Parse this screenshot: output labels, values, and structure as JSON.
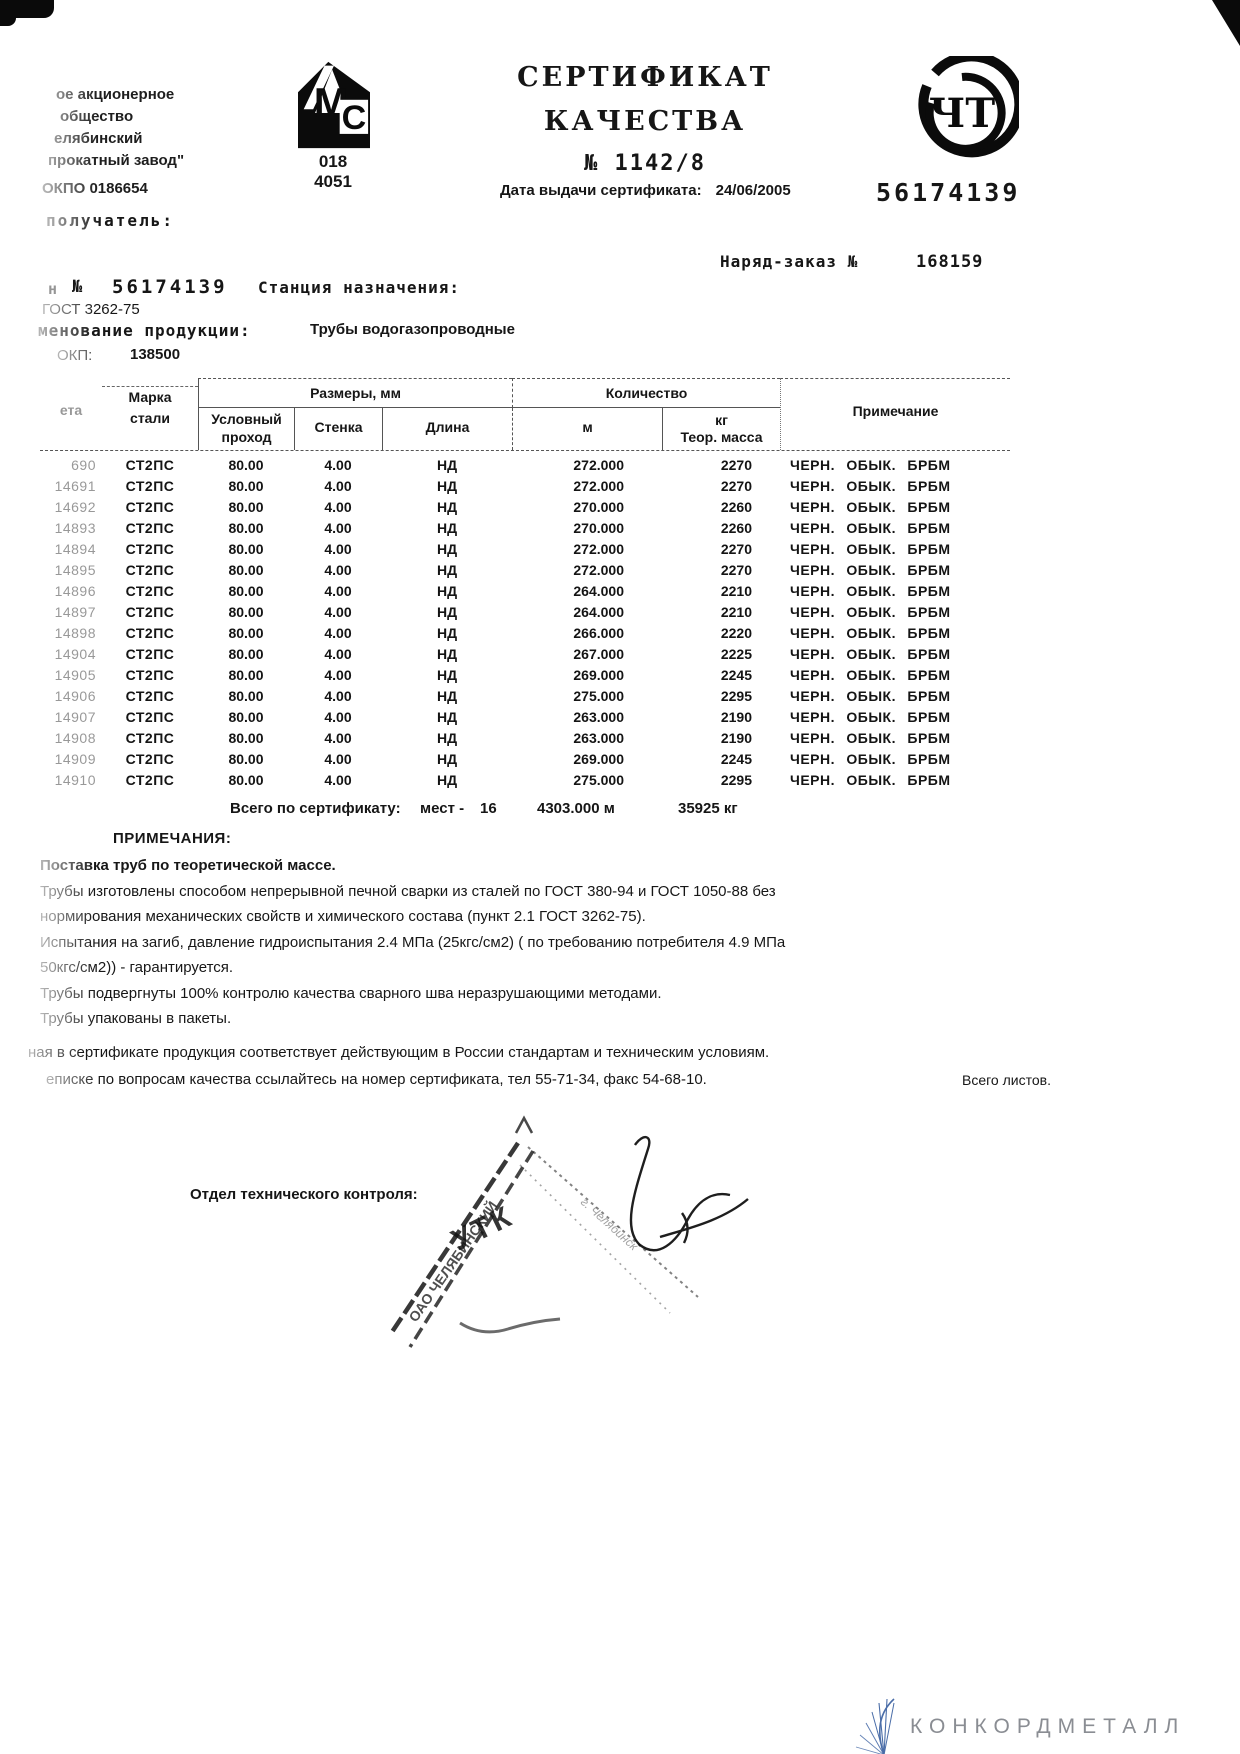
{
  "header": {
    "company_lines": [
      "ое акционерное",
      "общество",
      "елябинский",
      "прокатный завод\"",
      "ОКПО 0186654"
    ],
    "mc_logo": {
      "name": "MC factory mark",
      "code1": "018",
      "code2": "4051"
    },
    "title_line1": "СЕРТИФИКАТ",
    "title_line2": "КАЧЕСТВА",
    "title_number": "№ 1142/8",
    "date_label": "Дата выдачи сертификата:",
    "date_value": "24/06/2005",
    "cht_logo_text": "ЧТ",
    "big_number": "56174139"
  },
  "meta": {
    "receiver_label": "получатель:",
    "order_label": "Наряд-заказ №",
    "order_value": "168159",
    "cert_prefix": "н",
    "no_sign": "№",
    "cert_number": "56174139",
    "station_label": "Станция назначения:",
    "gost": "ГОСТ 3262-75",
    "product_label": "менование продукции:",
    "product_value": "Трубы водогазопроводные",
    "okp_label": "ОКП:",
    "okp_value": "138500"
  },
  "table": {
    "headers": {
      "col_id": "ета",
      "col_steel": "Марка стали",
      "group_sizes": "Размеры, мм",
      "col_bore": "Условный проход",
      "col_wall": "Стенка",
      "col_len": "Длина",
      "group_qty": "Количество",
      "col_m": "м",
      "col_kg_1": "кг",
      "col_kg_2": "Теор. масса",
      "col_note": "Примечание"
    },
    "rows": [
      [
        "690",
        "СТ2ПС",
        "80.00",
        "4.00",
        "НД",
        "272.000",
        "2270",
        "ЧЕРН. ОБЫК. БРБМ"
      ],
      [
        "14691",
        "СТ2ПС",
        "80.00",
        "4.00",
        "НД",
        "272.000",
        "2270",
        "ЧЕРН. ОБЫК. БРБМ"
      ],
      [
        "14692",
        "СТ2ПС",
        "80.00",
        "4.00",
        "НД",
        "270.000",
        "2260",
        "ЧЕРН. ОБЫК. БРБМ"
      ],
      [
        "14893",
        "СТ2ПС",
        "80.00",
        "4.00",
        "НД",
        "270.000",
        "2260",
        "ЧЕРН. ОБЫК. БРБМ"
      ],
      [
        "14894",
        "СТ2ПС",
        "80.00",
        "4.00",
        "НД",
        "272.000",
        "2270",
        "ЧЕРН. ОБЫК. БРБМ"
      ],
      [
        "14895",
        "СТ2ПС",
        "80.00",
        "4.00",
        "НД",
        "272.000",
        "2270",
        "ЧЕРН. ОБЫК. БРБМ"
      ],
      [
        "14896",
        "СТ2ПС",
        "80.00",
        "4.00",
        "НД",
        "264.000",
        "2210",
        "ЧЕРН. ОБЫК. БРБМ"
      ],
      [
        "14897",
        "СТ2ПС",
        "80.00",
        "4.00",
        "НД",
        "264.000",
        "2210",
        "ЧЕРН. ОБЫК. БРБМ"
      ],
      [
        "14898",
        "СТ2ПС",
        "80.00",
        "4.00",
        "НД",
        "266.000",
        "2220",
        "ЧЕРН. ОБЫК. БРБМ"
      ],
      [
        "14904",
        "СТ2ПС",
        "80.00",
        "4.00",
        "НД",
        "267.000",
        "2225",
        "ЧЕРН. ОБЫК. БРБМ"
      ],
      [
        "14905",
        "СТ2ПС",
        "80.00",
        "4.00",
        "НД",
        "269.000",
        "2245",
        "ЧЕРН. ОБЫК. БРБМ"
      ],
      [
        "14906",
        "СТ2ПС",
        "80.00",
        "4.00",
        "НД",
        "275.000",
        "2295",
        "ЧЕРН. ОБЫК. БРБМ"
      ],
      [
        "14907",
        "СТ2ПС",
        "80.00",
        "4.00",
        "НД",
        "263.000",
        "2190",
        "ЧЕРН. ОБЫК. БРБМ"
      ],
      [
        "14908",
        "СТ2ПС",
        "80.00",
        "4.00",
        "НД",
        "263.000",
        "2190",
        "ЧЕРН. ОБЫК. БРБМ"
      ],
      [
        "14909",
        "СТ2ПС",
        "80.00",
        "4.00",
        "НД",
        "269.000",
        "2245",
        "ЧЕРН. ОБЫК. БРБМ"
      ],
      [
        "14910",
        "СТ2ПС",
        "80.00",
        "4.00",
        "НД",
        "275.000",
        "2295",
        "ЧЕРН. ОБЫК. БРБМ"
      ]
    ],
    "totals": {
      "label": "Всего по сертификату:",
      "places_label": "мест -",
      "places": "16",
      "length": "4303.000 м",
      "weight": "35925 кг"
    }
  },
  "notes": {
    "title": "ПРИМЕЧАНИЯ:",
    "lines": [
      "Поставка труб по теоретической массе.",
      "Трубы изготовлены способом непрерывной печной сварки из сталей по ГОСТ 380-94 и ГОСТ 1050-88 без",
      "нормирования механических свойств и химического состава (пункт 2.1 ГОСТ 3262-75).",
      "Испытания на загиб,  давление гидроиспытания 2.4 МПа (25кгс/см2) ( по требованию потребителя 4.9 МПа",
      "50кгс/см2)) - гарантируется.",
      "Трубы подвергнуты 100% контролю качества сварного шва неразрушающими методами.",
      "Трубы упакованы в пакеты."
    ]
  },
  "footer": {
    "line1": "ная в сертификате продукция соответствует действующим в России стандартам и техническим условиям.",
    "line2": "еписке по вопросам качества ссылайтесь на номер сертификата, тел 55-71-34, факс 54-68-10.",
    "sheets_label": "Всего листов.",
    "otk_label": "Отдел технического контроля:"
  },
  "stamp": {
    "text_utk": "УТК",
    "text_edge": "ОАО ЧЕЛЯБИНСКИЙ"
  },
  "watermark": {
    "text": "КОНКОРДМЕТАЛЛ"
  },
  "colors": {
    "watermark_blue": "#4a6da8",
    "watermark_gray": "#8a8d93",
    "ink": "#161616"
  }
}
